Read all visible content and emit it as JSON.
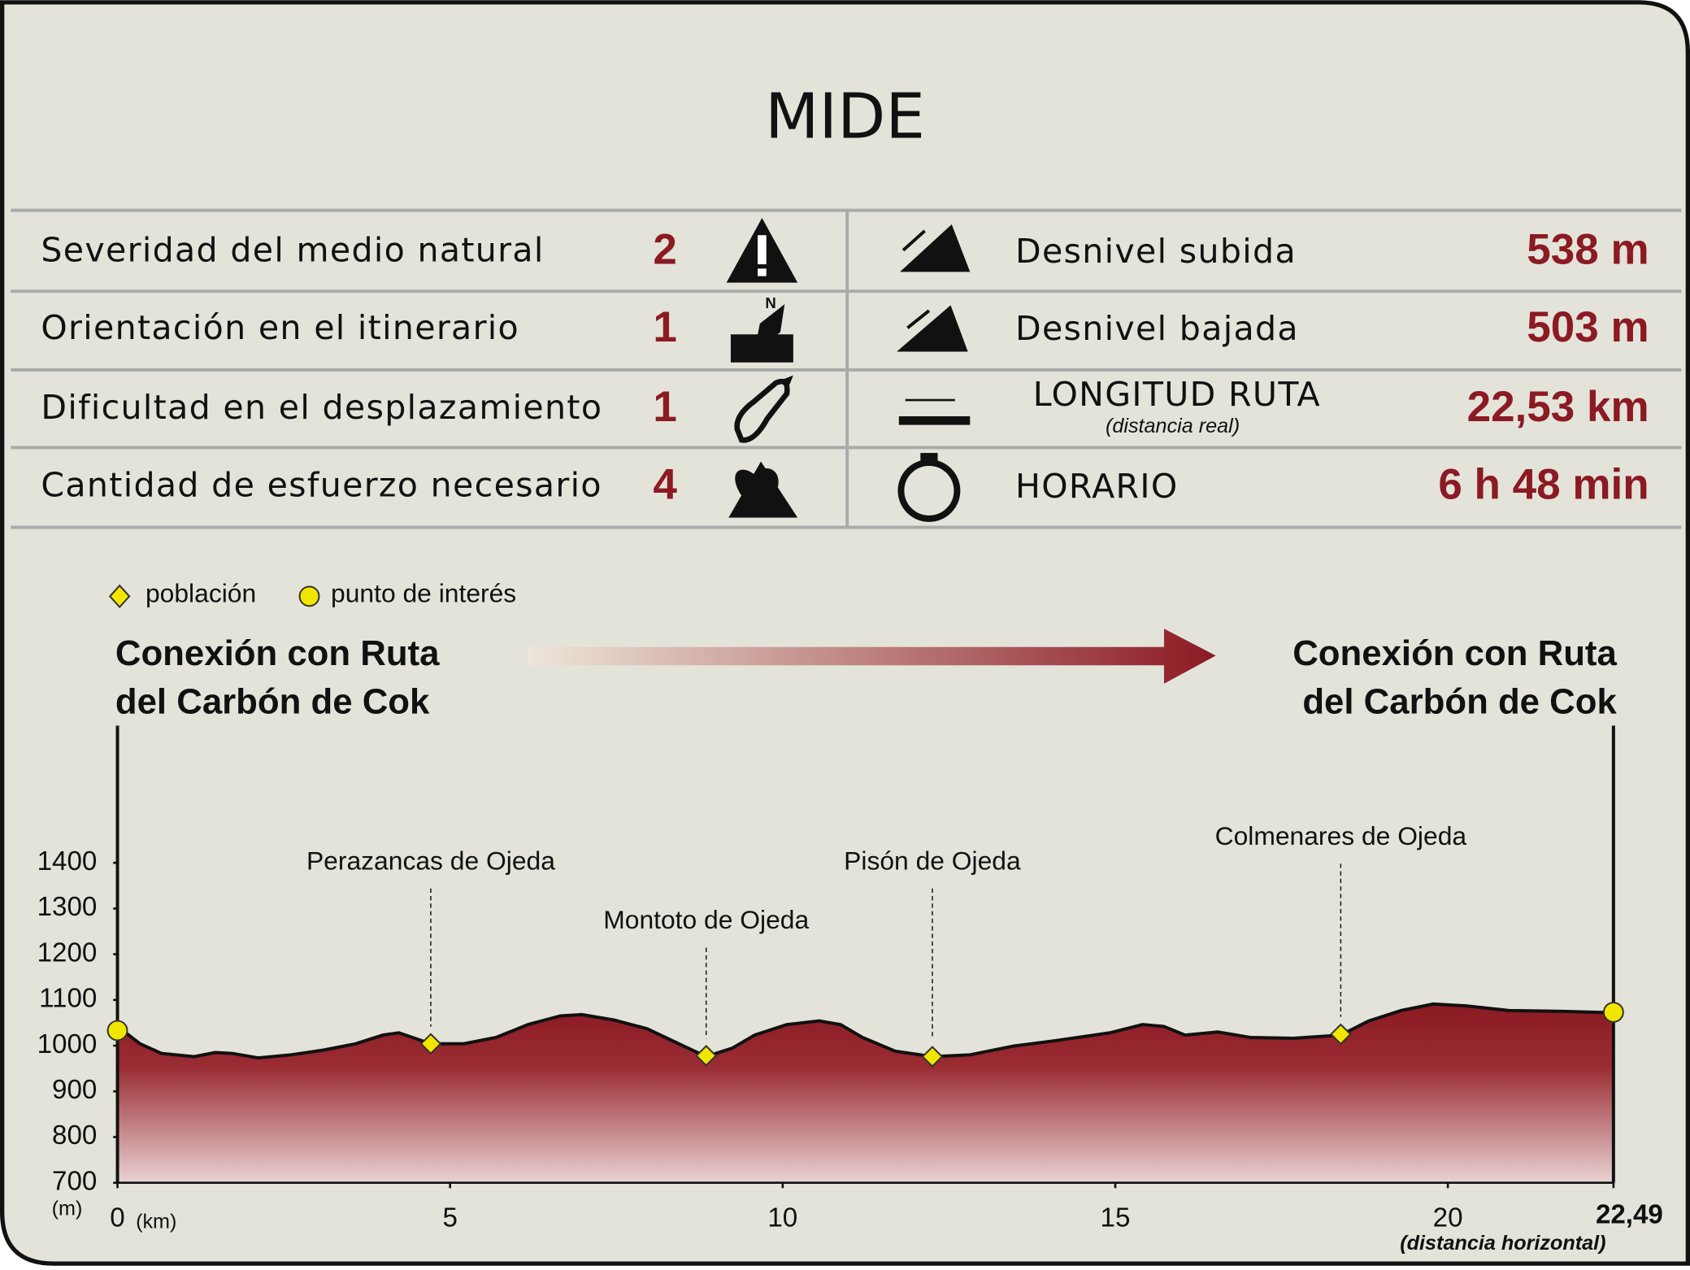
{
  "header": {
    "title": "MIDE"
  },
  "mide": {
    "rows": [
      {
        "label": "Severidad del medio natural",
        "value": "2",
        "right_label": "Desnivel subida",
        "right_value": "538 m"
      },
      {
        "label": "Orientación en el itinerario",
        "value": "1",
        "right_label": "Desnivel bajada",
        "right_value": "503 m"
      },
      {
        "label": "Dificultad en el desplazamiento",
        "value": "1",
        "right_label": "LONGITUD RUTA",
        "right_sublabel": "(distancia real)",
        "right_value": "22,53 km"
      },
      {
        "label": "Cantidad de esfuerzo necesario",
        "value": "4",
        "right_label": "HORARIO",
        "right_value": "6 h 48 min"
      }
    ]
  },
  "chart_data": {
    "type": "area",
    "legend": [
      "población",
      "punto de interés"
    ],
    "start_label": [
      "Conexión con Ruta",
      "del Carbón de Cok"
    ],
    "end_label": [
      "Conexión con Ruta",
      "del Carbón de Cok"
    ],
    "x_unit": "(km)",
    "y_unit": "(m)",
    "x_note": "(distancia horizontal)",
    "x": [
      0,
      0.34,
      0.66,
      1.15,
      1.47,
      1.72,
      2.12,
      2.61,
      3.09,
      3.58,
      3.99,
      4.23,
      4.47,
      4.71,
      5.2,
      5.69,
      6.17,
      6.66,
      6.98,
      7.47,
      7.96,
      8.44,
      8.85,
      9.25,
      9.58,
      10.06,
      10.55,
      10.87,
      11.2,
      11.69,
      12.25,
      12.82,
      13.47,
      14.11,
      14.92,
      15.41,
      15.73,
      16.05,
      16.54,
      17.03,
      17.68,
      18.39,
      18.81,
      19.3,
      19.78,
      20.27,
      20.92,
      21.73,
      22.49
    ],
    "y": [
      1042,
      1004,
      983,
      976,
      985,
      983,
      973,
      980,
      990,
      1004,
      1023,
      1028,
      1016,
      1004,
      1004,
      1018,
      1046,
      1065,
      1068,
      1056,
      1037,
      1004,
      976,
      995,
      1023,
      1046,
      1054,
      1046,
      1018,
      988,
      976,
      980,
      999,
      1011,
      1028,
      1046,
      1042,
      1023,
      1030,
      1018,
      1016,
      1023,
      1054,
      1077,
      1091,
      1087,
      1077,
      1075,
      1072
    ],
    "towns": [
      {
        "label": "Perazancas de Ojeda",
        "x": 4.71,
        "y": 1004
      },
      {
        "label": "Montoto de Ojeda",
        "x": 8.85,
        "y": 978
      },
      {
        "label": "Pisón de Ojeda",
        "x": 12.25,
        "y": 976
      },
      {
        "label": "Colmenares de Ojeda",
        "x": 18.39,
        "y": 1025
      }
    ],
    "points_of_interest": [
      {
        "x": 0,
        "y": 1033
      },
      {
        "x": 22.49,
        "y": 1073
      }
    ],
    "xlim": [
      0,
      22.49
    ],
    "xticks": [
      0,
      5,
      10,
      15,
      20,
      {
        "value": 22.49,
        "label": "22,49"
      }
    ],
    "ylim": [
      700,
      1700
    ],
    "yticks": [
      700,
      800,
      900,
      1000,
      1100,
      1200,
      1300,
      1400
    ],
    "area_color": "#8b1a22",
    "marker_color": "#f2e600"
  }
}
